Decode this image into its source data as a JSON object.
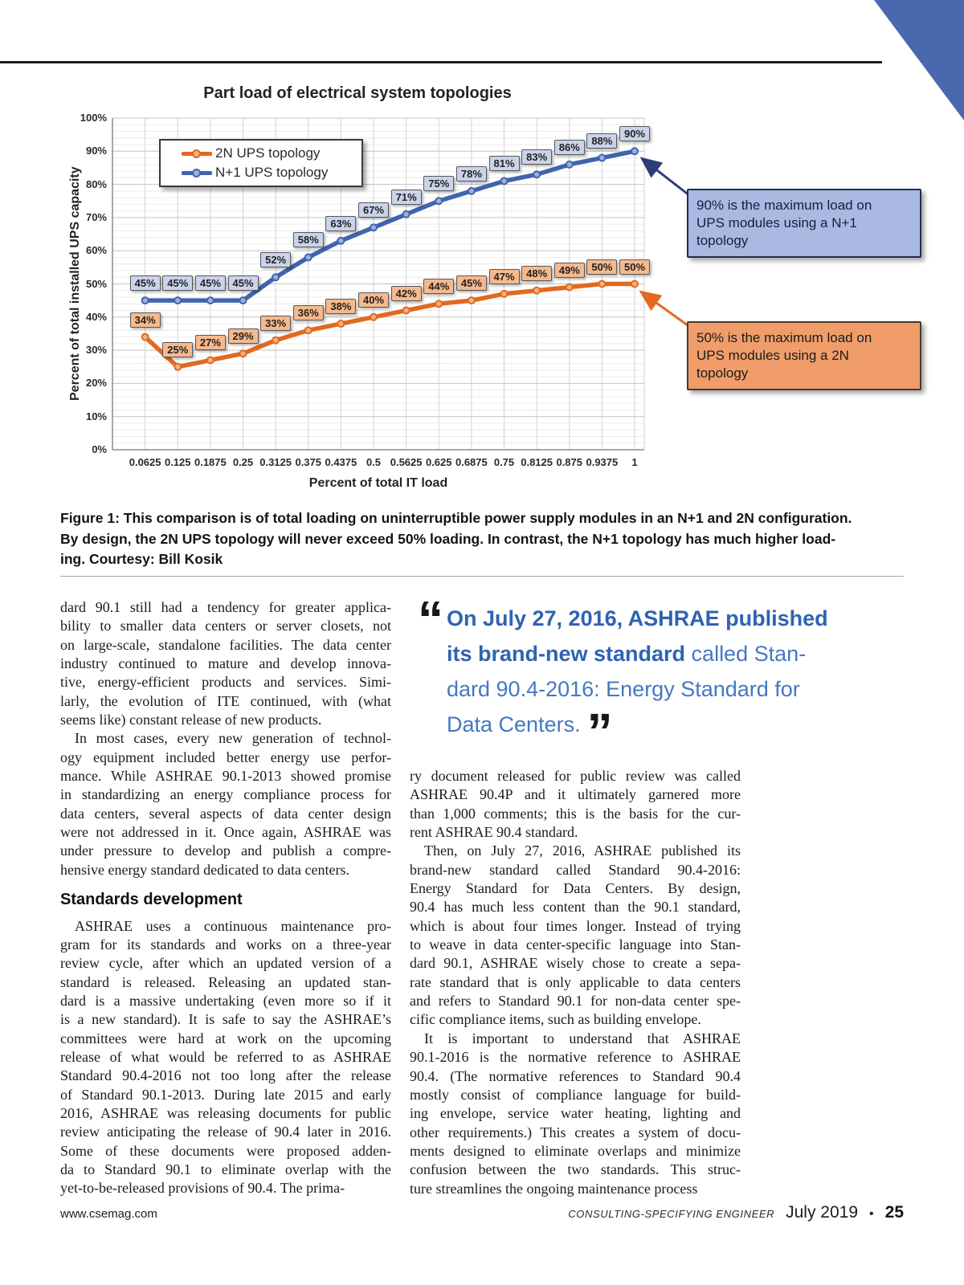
{
  "chart_data": {
    "type": "line",
    "title": "Part load of electrical system topologies",
    "xlabel": "Percent of total IT load",
    "ylabel": "Percent of total installed UPS capacity",
    "x": [
      0.0625,
      0.125,
      0.1875,
      0.25,
      0.3125,
      0.375,
      0.4375,
      0.5,
      0.5625,
      0.625,
      0.6875,
      0.75,
      0.8125,
      0.875,
      0.9375,
      1
    ],
    "x_ticklabels": [
      "0.0625",
      "0.125",
      "0.1875",
      "0.25",
      "0.3125",
      "0.375",
      "0.4375",
      "0.5",
      "0.5625",
      "0.625",
      "0.6875",
      "0.75",
      "0.8125",
      "0.875",
      "0.9375",
      "1"
    ],
    "ylim": [
      0,
      100
    ],
    "y_tick_step": 10,
    "y_ticklabels": [
      "0%",
      "10%",
      "20%",
      "30%",
      "40%",
      "50%",
      "60%",
      "70%",
      "80%",
      "90%",
      "100%"
    ],
    "grid": true,
    "legend_position": "upper left",
    "series": [
      {
        "name": "2N UPS topology",
        "color": "#e2691f",
        "label_bg": "#f6b98c",
        "values": [
          34,
          25,
          27,
          29,
          33,
          36,
          38,
          40,
          42,
          44,
          45,
          47,
          48,
          49,
          50,
          50
        ]
      },
      {
        "name": "N+1 UPS topology",
        "color": "#4064ae",
        "label_bg": "#c9d3ea",
        "values": [
          45,
          45,
          45,
          45,
          52,
          58,
          63,
          67,
          71,
          75,
          78,
          81,
          83,
          86,
          88,
          90
        ]
      }
    ],
    "annotations": [
      {
        "lines": [
          "90% is the maximum  load on",
          "UPS modules using a N+1",
          "topology"
        ],
        "bg": "#a9b9e2",
        "border": "#1f2d52"
      },
      {
        "lines": [
          "50% is the maximum  load on",
          "UPS modules using a 2N",
          "topology"
        ],
        "bg": "#f09d6a",
        "border": "#4a3a2a"
      }
    ]
  },
  "figure_caption": {
    "lines": [
      "Figure 1: This comparison is of total loading on uninterruptible power supply modules in an N+1 and 2N configuration.",
      "By design, the 2N UPS topology will never exceed 50% loading. In contrast, the N+1 topology has much higher load-",
      "ing. Courtesy: Bill Kosik"
    ]
  },
  "article": {
    "left_column": {
      "p1_lines": [
        "dard 90.1 still had a tendency for greater applica-",
        "bility to smaller data centers or server closets, not",
        "on large-scale, standalone facilities. The data center",
        "industry continued to mature and develop innova-",
        "tive, energy-efficient products and services. Simi-",
        "larly, the evolution of ITE continued, with (what",
        "seems like) constant release of new products."
      ],
      "p2_lines": [
        " In most cases, every new generation of technol-",
        "ogy equipment included better energy use perfor-",
        "mance. While ASHRAE 90.1-2013 showed promise",
        "in standardizing an energy compliance process for",
        "data centers, several aspects of data center design",
        "were not addressed in it. Once again, ASHRAE was",
        "under pressure to develop and publish a compre-",
        "hensive energy standard dedicated to data centers."
      ],
      "heading": "Standards development",
      "p3_lines": [
        " ASHRAE uses a continuous maintenance pro-",
        "gram for its standards and works on a three-year",
        "review cycle, after which an updated version of a",
        "standard is released. Releasing an updated stan-",
        "dard is a massive undertaking (even more so if it",
        "is a new standard). It is safe to say the ASHRAE’s",
        "committees were hard at work on the upcoming",
        "release of what would be referred to as ASHRAE",
        "Standard 90.4-2016 not too long after the release",
        "of Standard 90.1-2013. During late 2015 and early",
        "2016, ASHRAE was releasing documents for public",
        "review anticipating the release of 90.4 later in 2016.",
        "Some of these documents were proposed adden-",
        "da to Standard 90.1 to eliminate overlap with the",
        "yet-to-be-released provisions of 90.4. The prima-"
      ]
    },
    "right_column": {
      "p1_lines": [
        "ry document released for public review was called",
        "ASHRAE 90.4P and it ultimately garnered more",
        "than 1,000 comments; this is the basis for the cur-",
        "rent ASHRAE 90.4 standard."
      ],
      "p2_lines": [
        " Then, on July 27, 2016, ASHRAE published its",
        "brand-new standard called Standard 90.4-2016:",
        "Energy Standard for Data Centers. By design,",
        "90.4 has much less content than the 90.1 standard,",
        "which is about four times longer. Instead of trying",
        "to weave in data center-specific language into Stan-",
        "dard 90.1, ASHRAE wisely chose to create a sepa-",
        "rate standard that is only applicable to data centers",
        "and refers to Standard 90.1 for non-data center spe-",
        "cific compliance items, such as building envelope."
      ],
      "p3_lines": [
        " It is important to understand that ASHRAE",
        "90.1-2016 is the normative reference to ASHRAE",
        "90.4. (The normative references to Standard 90.4",
        "mostly consist of compliance language for build-",
        "ing envelope, service water heating, lighting and",
        "other requirements.) This creates a system of docu-",
        "ments designed to eliminate overlaps and minimize",
        "confusion between the two standards. This struc-",
        "ture streamlines the ongoing maintenance process"
      ]
    }
  },
  "pullquote": {
    "open_quote": "“",
    "close_quote": "”",
    "l1_bold": "On July 27, 2016, ASHRAE published",
    "l2_bold": "its brand-new standard",
    "l2_regular": " called Stan-",
    "l3_regular": "dard 90.4-2016: Energy Standard for",
    "l4_regular": "Data Centers."
  },
  "footer": {
    "site": "www.csemag.com",
    "magazine": "CONSULTING-SPECIFYING ENGINEER",
    "date": "July 2019",
    "bullet": "•",
    "page_number": "25"
  }
}
